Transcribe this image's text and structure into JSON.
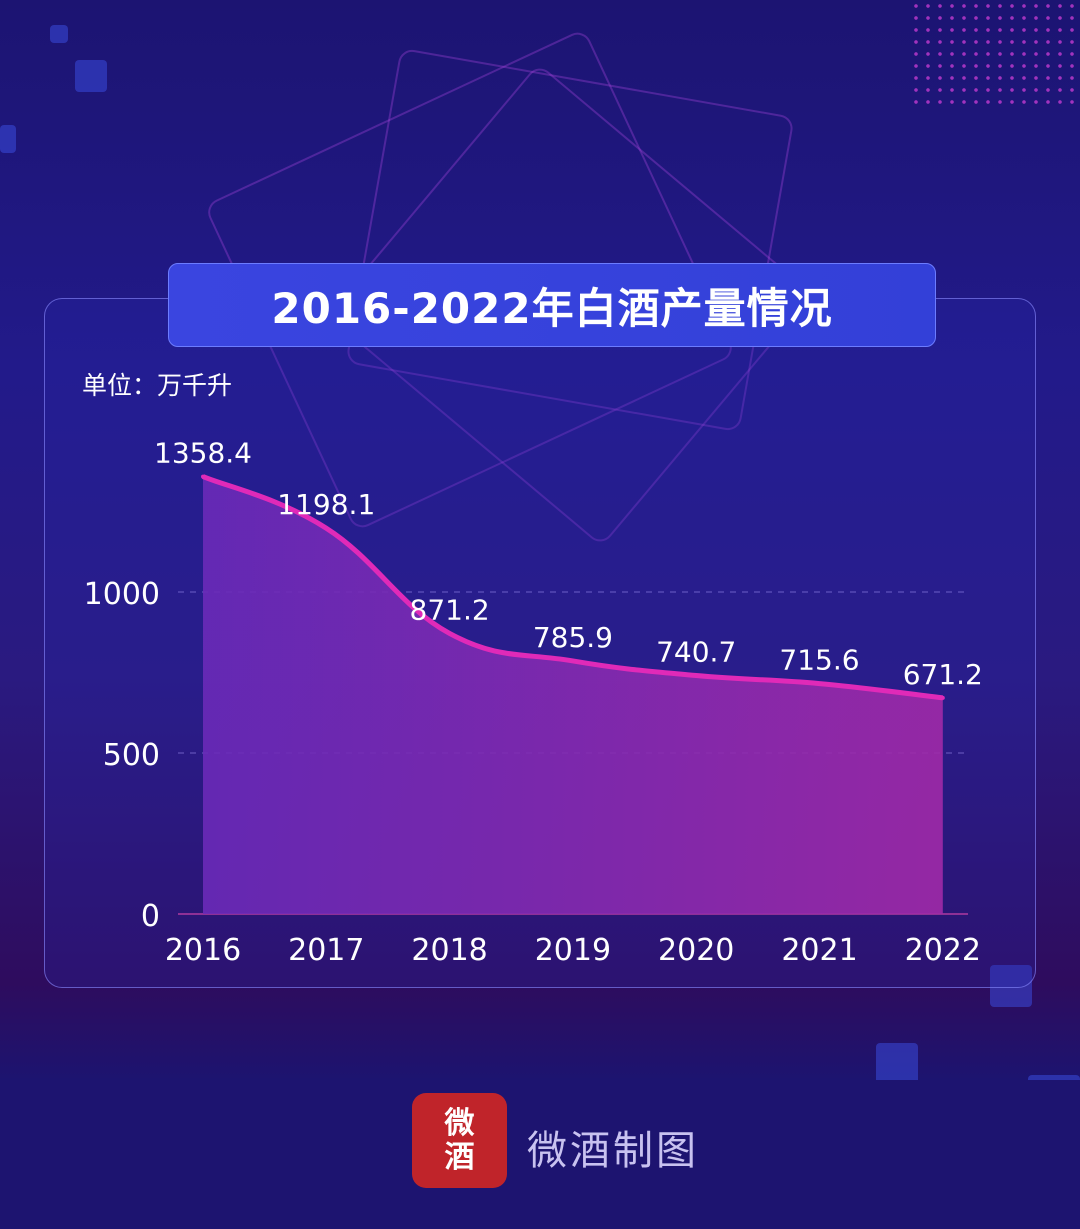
{
  "title": "2016-2022年白酒产量情况",
  "unit_label": "单位：万千升",
  "brand": {
    "logo_text": [
      "微",
      "酒"
    ],
    "name": "微酒制图"
  },
  "colors": {
    "line": "#e02ab8",
    "title_bg": "#3a45e0",
    "logo_bg": "#c0242a"
  },
  "chart_data": {
    "type": "area",
    "title": "2016-2022年白酒产量情况",
    "ylabel": "万千升",
    "categories": [
      "2016",
      "2017",
      "2018",
      "2019",
      "2020",
      "2021",
      "2022"
    ],
    "values": [
      1358.4,
      1198.1,
      871.2,
      785.9,
      740.7,
      715.6,
      671.2
    ],
    "value_labels": [
      "1358.4",
      "1198.1",
      "871.2",
      "785.9",
      "740.7",
      "715.6",
      "671.2"
    ],
    "yticks": [
      "0",
      "500",
      "1000"
    ],
    "ytick_values": [
      0,
      500,
      1000
    ],
    "ylim": [
      0,
      1000
    ],
    "grid": true
  }
}
